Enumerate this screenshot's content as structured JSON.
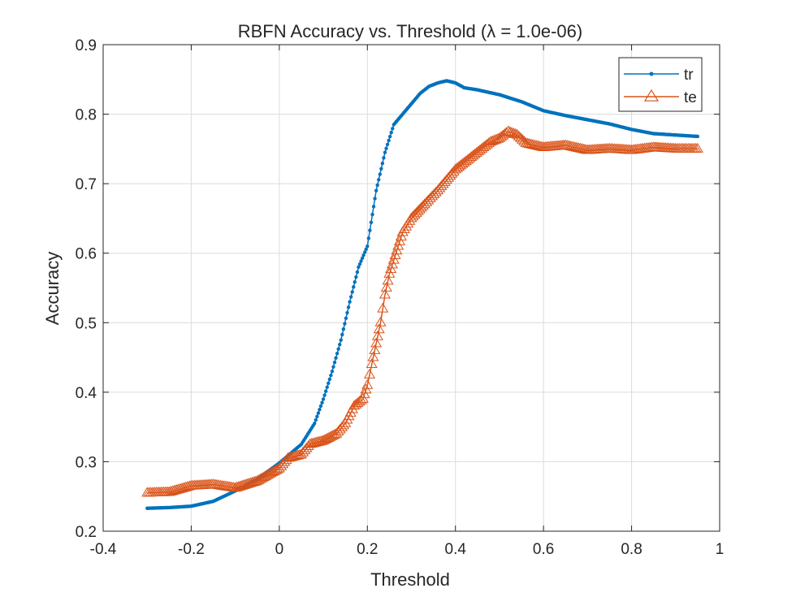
{
  "chart_data": {
    "type": "line",
    "title": "RBFN Accuracy vs. Threshold (λ = 1.0e-06)",
    "xlabel": "Threshold",
    "ylabel": "Accuracy",
    "xlim": [
      -0.4,
      1
    ],
    "ylim": [
      0.2,
      0.9
    ],
    "xticks": [
      "-0.4",
      "-0.2",
      "0",
      "0.2",
      "0.4",
      "0.6",
      "0.8",
      "1"
    ],
    "yticks": [
      "0.2",
      "0.3",
      "0.4",
      "0.5",
      "0.6",
      "0.7",
      "0.8",
      "0.9"
    ],
    "grid": true,
    "legend_position": "top-right",
    "series": [
      {
        "name": "tr",
        "color": "#0072BD",
        "marker": "point",
        "x": [
          -0.3,
          -0.25,
          -0.2,
          -0.15,
          -0.1,
          -0.05,
          0.0,
          0.05,
          0.08,
          0.1,
          0.12,
          0.14,
          0.16,
          0.18,
          0.2,
          0.22,
          0.24,
          0.26,
          0.28,
          0.3,
          0.32,
          0.34,
          0.36,
          0.38,
          0.4,
          0.42,
          0.45,
          0.5,
          0.55,
          0.6,
          0.65,
          0.7,
          0.75,
          0.8,
          0.85,
          0.9,
          0.95
        ],
        "y": [
          0.233,
          0.234,
          0.236,
          0.243,
          0.258,
          0.275,
          0.298,
          0.325,
          0.355,
          0.39,
          0.43,
          0.475,
          0.53,
          0.58,
          0.61,
          0.69,
          0.745,
          0.785,
          0.8,
          0.815,
          0.83,
          0.84,
          0.845,
          0.848,
          0.845,
          0.838,
          0.835,
          0.828,
          0.818,
          0.805,
          0.798,
          0.792,
          0.786,
          0.778,
          0.772,
          0.77,
          0.768
        ]
      },
      {
        "name": "te",
        "color": "#D95319",
        "marker": "triangle",
        "x": [
          -0.3,
          -0.25,
          -0.2,
          -0.15,
          -0.1,
          -0.05,
          0.0,
          0.02,
          0.05,
          0.07,
          0.1,
          0.13,
          0.15,
          0.17,
          0.19,
          0.2,
          0.21,
          0.22,
          0.23,
          0.24,
          0.25,
          0.26,
          0.27,
          0.28,
          0.3,
          0.33,
          0.36,
          0.38,
          0.4,
          0.42,
          0.44,
          0.46,
          0.48,
          0.5,
          0.52,
          0.54,
          0.56,
          0.6,
          0.65,
          0.7,
          0.75,
          0.8,
          0.85,
          0.9,
          0.95
        ],
        "y": [
          0.255,
          0.256,
          0.265,
          0.267,
          0.262,
          0.272,
          0.29,
          0.305,
          0.31,
          0.325,
          0.33,
          0.34,
          0.355,
          0.38,
          0.39,
          0.41,
          0.44,
          0.47,
          0.5,
          0.54,
          0.57,
          0.59,
          0.61,
          0.63,
          0.65,
          0.67,
          0.69,
          0.705,
          0.72,
          0.73,
          0.74,
          0.75,
          0.76,
          0.765,
          0.775,
          0.77,
          0.758,
          0.752,
          0.755,
          0.748,
          0.75,
          0.748,
          0.752,
          0.75,
          0.75
        ]
      }
    ]
  }
}
